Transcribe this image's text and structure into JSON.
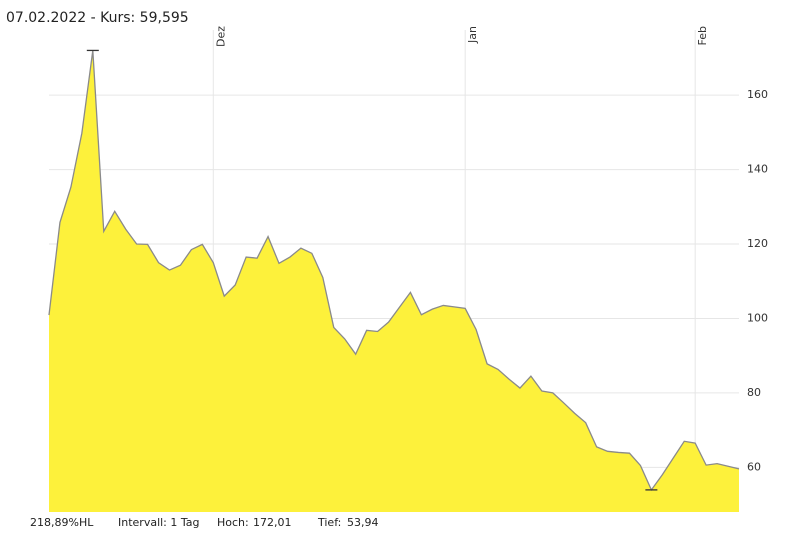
{
  "chart_data": {
    "type": "area",
    "title": "07.02.2022  -  Kurs: 59,595",
    "categories": [
      null,
      null,
      null,
      null,
      null,
      null,
      null,
      null,
      null,
      null,
      null,
      null,
      null,
      null,
      null,
      "Dez",
      null,
      null,
      null,
      null,
      null,
      null,
      null,
      null,
      null,
      null,
      null,
      null,
      null,
      null,
      null,
      null,
      null,
      null,
      null,
      null,
      null,
      null,
      "Jan",
      null,
      null,
      null,
      null,
      null,
      null,
      null,
      null,
      null,
      null,
      null,
      null,
      null,
      null,
      null,
      null,
      null,
      null,
      null,
      null,
      "Feb",
      null,
      null,
      null,
      null
    ],
    "values": [
      100.9,
      125.8,
      135.3,
      149.8,
      172.01,
      123.4,
      128.8,
      124,
      120,
      119.9,
      115,
      113,
      114.3,
      118.5,
      119.9,
      115,
      106,
      109,
      116.5,
      116.2,
      122,
      114.8,
      116.5,
      118.9,
      117.5,
      111,
      97.6,
      94.5,
      90.4,
      96.8,
      96.5,
      99,
      103,
      107,
      101,
      102.5,
      103.5,
      103.1,
      102.7,
      97,
      87.8,
      86.3,
      83.7,
      81.3,
      84.5,
      80.5,
      80,
      77.3,
      74.5,
      72,
      65.5,
      64.3,
      64,
      63.8,
      60.5,
      53.94,
      58,
      62.5,
      67,
      66.5,
      60.6,
      61,
      60.3,
      59.6
    ],
    "color": "#fdf13b",
    "line_color": "#8a8a8a",
    "ylim": [
      48,
      177.5
    ],
    "yticks": [
      60,
      80,
      100,
      120,
      140,
      160
    ],
    "grid": true,
    "info": [
      "218,89%HL",
      "Intervall: 1 Tag",
      "Hoch:",
      "172,01",
      "Tief:",
      "53,94"
    ]
  }
}
